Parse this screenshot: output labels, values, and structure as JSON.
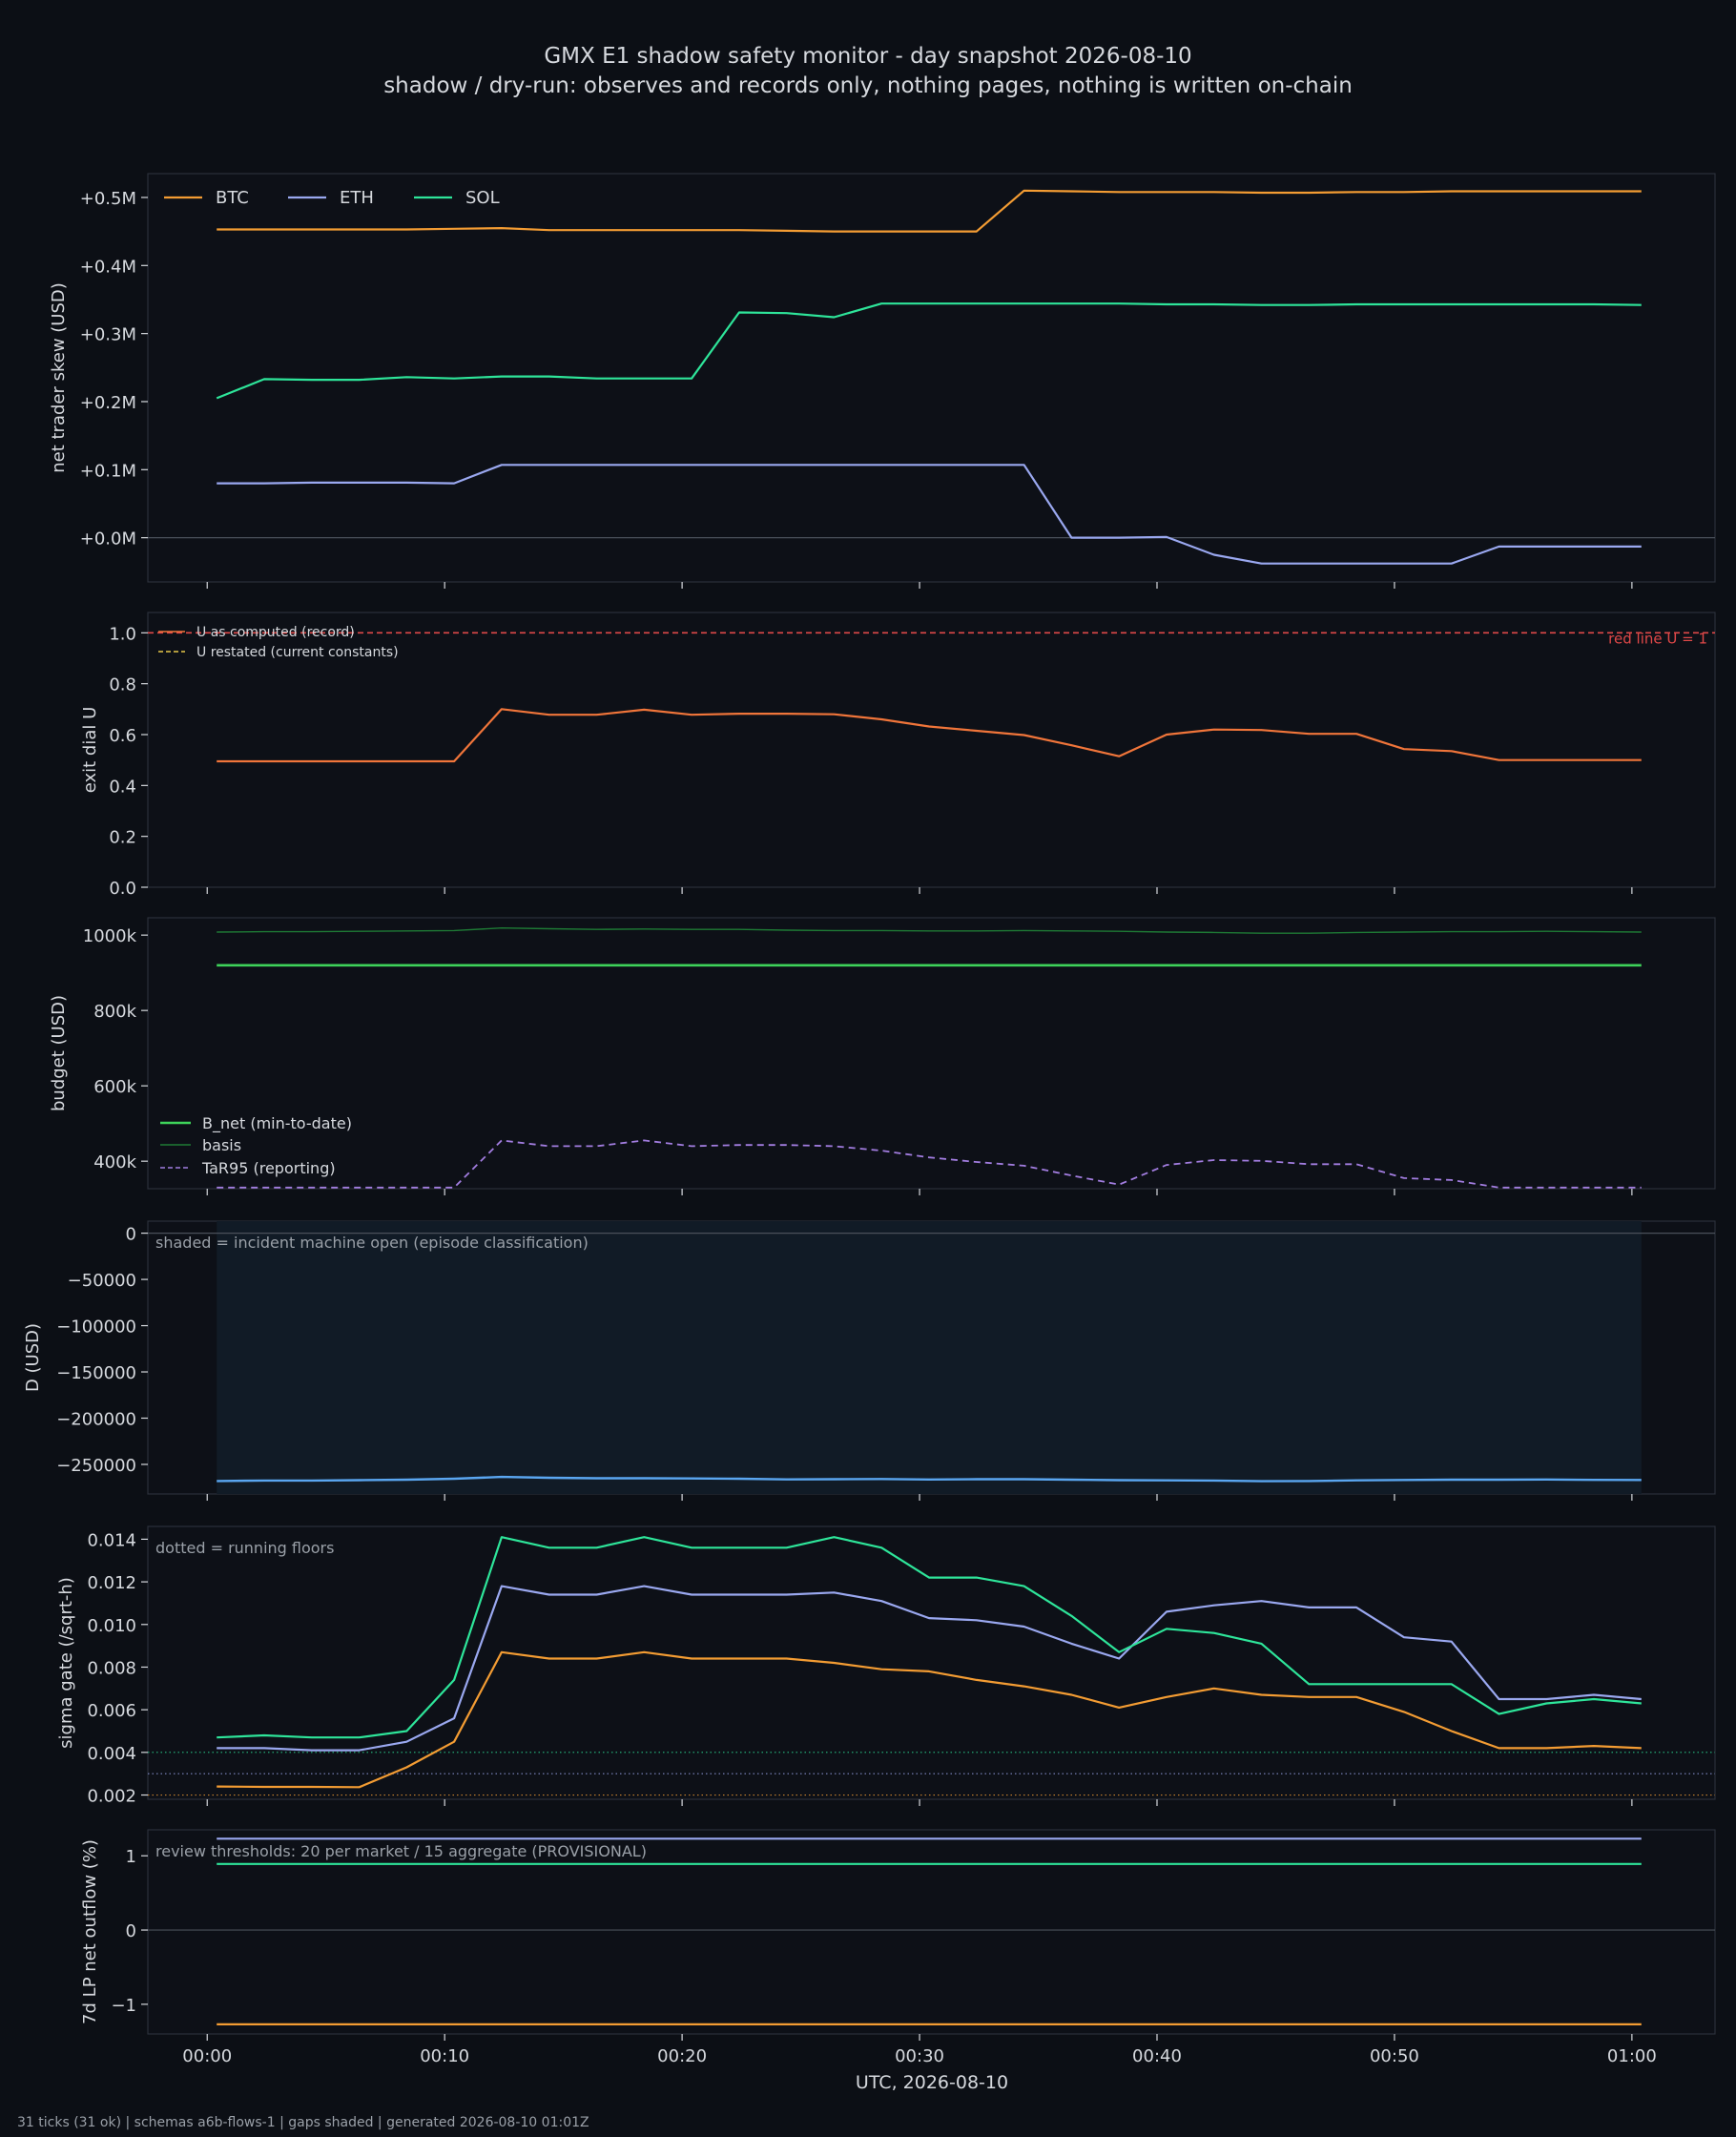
{
  "title_line1": "GMX E1 shadow safety monitor - day snapshot 2026-08-10",
  "title_line2": "shadow / dry-run: observes and records only, nothing pages, nothing is written on-chain",
  "footer": "31 ticks (31 ok) | schemas a6b-flows-1 | gaps shaded | generated 2026-08-10 01:01Z",
  "x_axis": {
    "label": "UTC, 2026-08-10",
    "tick_labels": [
      "00:00",
      "00:10",
      "00:20",
      "00:30",
      "00:40",
      "00:50",
      "01:00"
    ],
    "tick_minutes": [
      0,
      10,
      20,
      30,
      40,
      50,
      60
    ],
    "range_minutes": [
      -2.5,
      63.5
    ],
    "sample_minutes": [
      0.4,
      2.4,
      4.4,
      6.4,
      8.4,
      10.4,
      12.4,
      14.4,
      16.4,
      18.4,
      20.4,
      22.4,
      24.4,
      26.4,
      28.4,
      30.4,
      32.4,
      34.4,
      36.4,
      38.4,
      40.4,
      42.4,
      44.4,
      46.4,
      48.4,
      50.4,
      52.4,
      54.4,
      56.4,
      58.4,
      60.4
    ]
  },
  "colors": {
    "background": "#0c0f15",
    "panel_border": "#2b303a",
    "text": "#d6d9de",
    "muted": "#9aa0a8",
    "btc": "#f39c33",
    "eth": "#9aa8f0",
    "sol": "#2ee59a",
    "u_record": "#f0753a",
    "red_line": "#e04848",
    "u_restated": "#e8c84a",
    "b_net": "#3ed35a",
    "basis": "#1e7a35",
    "tar95": "#a27de0",
    "d_line": "#5aa6f0",
    "incident_shade": "#111b26"
  },
  "chart_data": [
    {
      "id": "skew",
      "type": "line",
      "ylabel": "net trader skew (USD)",
      "ylim": [
        -0.065,
        0.535
      ],
      "y_ticks": [
        0,
        0.1,
        0.2,
        0.3,
        0.4,
        0.5
      ],
      "y_tick_labels": [
        "+0.0M",
        "+0.1M",
        "+0.2M",
        "+0.3M",
        "+0.4M",
        "+0.5M"
      ],
      "zero_line": 0,
      "legend": {
        "placement": "top-left",
        "entries": [
          "BTC",
          "ETH",
          "SOL"
        ]
      },
      "series": [
        {
          "name": "BTC",
          "values": [
            0.453,
            0.453,
            0.453,
            0.453,
            0.453,
            0.454,
            0.455,
            0.452,
            0.452,
            0.452,
            0.452,
            0.452,
            0.451,
            0.45,
            0.45,
            0.45,
            0.45,
            0.51,
            0.509,
            0.508,
            0.508,
            0.508,
            0.507,
            0.507,
            0.508,
            0.508,
            0.509,
            0.509,
            0.509,
            0.509,
            0.509
          ]
        },
        {
          "name": "ETH",
          "values": [
            0.08,
            0.08,
            0.081,
            0.081,
            0.081,
            0.08,
            0.107,
            0.107,
            0.107,
            0.107,
            0.107,
            0.107,
            0.107,
            0.107,
            0.107,
            0.107,
            0.107,
            0.107,
            0.0,
            0.0,
            0.001,
            -0.025,
            -0.038,
            -0.038,
            -0.038,
            -0.038,
            -0.038,
            -0.013,
            -0.013,
            -0.013,
            -0.013
          ]
        },
        {
          "name": "SOL",
          "values": [
            0.205,
            0.233,
            0.232,
            0.232,
            0.236,
            0.234,
            0.237,
            0.237,
            0.234,
            0.234,
            0.234,
            0.331,
            0.33,
            0.324,
            0.344,
            0.344,
            0.344,
            0.344,
            0.344,
            0.344,
            0.343,
            0.343,
            0.342,
            0.342,
            0.343,
            0.343,
            0.343,
            0.343,
            0.343,
            0.343,
            0.342
          ]
        }
      ]
    },
    {
      "id": "exit_dial",
      "type": "line",
      "ylabel": "exit dial U",
      "ylim": [
        0,
        1.08
      ],
      "y_ticks": [
        0,
        0.2,
        0.4,
        0.6,
        0.8,
        1.0
      ],
      "y_tick_labels": [
        "0.0",
        "0.2",
        "0.4",
        "0.6",
        "0.8",
        "1.0"
      ],
      "red_line_value": 1.0,
      "red_line_label": "red line U = 1",
      "legend": {
        "placement": "top-left",
        "entries": [
          "U as computed (record)",
          "U restated (current constants)"
        ]
      },
      "series": [
        {
          "name": "U as computed (record)",
          "values": [
            0.495,
            0.495,
            0.495,
            0.495,
            0.495,
            0.495,
            0.7,
            0.678,
            0.678,
            0.698,
            0.678,
            0.682,
            0.682,
            0.68,
            0.66,
            0.632,
            0.615,
            0.598,
            0.558,
            0.515,
            0.6,
            0.62,
            0.618,
            0.603,
            0.603,
            0.543,
            0.535,
            0.5,
            0.5,
            0.5,
            0.5
          ]
        }
      ]
    },
    {
      "id": "budget",
      "type": "line",
      "ylabel": "budget (USD)",
      "ylim": [
        327000,
        1046000
      ],
      "y_ticks": [
        400000,
        600000,
        800000,
        1000000
      ],
      "y_tick_labels": [
        "400k",
        "600k",
        "800k",
        "1000k"
      ],
      "legend": {
        "placement": "bottom-left",
        "entries": [
          "B_net (min-to-date)",
          "basis",
          "TaR95 (reporting)"
        ]
      },
      "series": [
        {
          "name": "B_net (min-to-date)",
          "values": [
            920000,
            920000,
            920000,
            920000,
            920000,
            920000,
            920000,
            920000,
            920000,
            920000,
            920000,
            920000,
            920000,
            920000,
            920000,
            920000,
            920000,
            920000,
            920000,
            920000,
            920000,
            920000,
            920000,
            920000,
            920000,
            920000,
            920000,
            920000,
            920000,
            920000,
            920000
          ]
        },
        {
          "name": "basis",
          "values": [
            1008000,
            1009000,
            1009000,
            1010000,
            1011000,
            1012000,
            1019000,
            1017000,
            1015000,
            1016000,
            1015000,
            1015000,
            1013000,
            1012000,
            1012000,
            1011000,
            1011000,
            1012000,
            1011000,
            1010000,
            1008000,
            1007000,
            1005000,
            1005000,
            1007000,
            1008000,
            1009000,
            1009000,
            1010000,
            1009000,
            1008000
          ]
        },
        {
          "name": "TaR95 (reporting)",
          "values": [
            330000,
            330000,
            330000,
            330000,
            330000,
            330000,
            455000,
            440000,
            440000,
            455000,
            440000,
            443000,
            443000,
            440000,
            428000,
            410000,
            398000,
            388000,
            362000,
            338000,
            390000,
            403000,
            401000,
            392000,
            392000,
            355000,
            350000,
            330000,
            330000,
            330000,
            330000
          ]
        }
      ]
    },
    {
      "id": "drawdown",
      "type": "line",
      "ylabel": "D (USD)",
      "ylim": [
        -282000,
        13000
      ],
      "y_ticks": [
        0,
        -50000,
        -100000,
        -150000,
        -200000,
        -250000
      ],
      "y_tick_labels": [
        "0",
        "−50000",
        "−100000",
        "−150000",
        "−200000",
        "−250000"
      ],
      "zero_line": 0,
      "annotation": "shaded = incident machine open (episode classification)",
      "incident_shade_minutes": [
        0.4,
        60.4
      ],
      "series": [
        {
          "name": "D",
          "values": [
            -268000,
            -267500,
            -267500,
            -267000,
            -266500,
            -265500,
            -263500,
            -264500,
            -265000,
            -265000,
            -265200,
            -265500,
            -266200,
            -266000,
            -265800,
            -266300,
            -266000,
            -266000,
            -266500,
            -267000,
            -267200,
            -267500,
            -268200,
            -268000,
            -267200,
            -266800,
            -266500,
            -266500,
            -266300,
            -266700,
            -266800
          ]
        }
      ]
    },
    {
      "id": "sigma_gate",
      "type": "line",
      "ylabel": "sigma gate (/sqrt-h)",
      "ylim": [
        0.0018,
        0.0146
      ],
      "y_ticks": [
        0.002,
        0.004,
        0.006,
        0.008,
        0.01,
        0.012,
        0.014
      ],
      "y_tick_labels": [
        "0.002",
        "0.004",
        "0.006",
        "0.008",
        "0.010",
        "0.012",
        "0.014"
      ],
      "annotation": "dotted = running floors",
      "running_floors": [
        {
          "name": "SOL",
          "value": 0.004
        },
        {
          "name": "ETH",
          "value": 0.003
        },
        {
          "name": "BTC",
          "value": 0.002
        }
      ],
      "series": [
        {
          "name": "BTC",
          "values": [
            0.0024,
            0.00238,
            0.00238,
            0.00237,
            0.0033,
            0.0045,
            0.0087,
            0.0084,
            0.0084,
            0.0087,
            0.0084,
            0.0084,
            0.0084,
            0.0082,
            0.0079,
            0.0078,
            0.0074,
            0.0071,
            0.0067,
            0.0061,
            0.0066,
            0.007,
            0.0067,
            0.0066,
            0.0066,
            0.0059,
            0.005,
            0.0042,
            0.0042,
            0.0043,
            0.0042
          ]
        },
        {
          "name": "ETH",
          "values": [
            0.0042,
            0.0042,
            0.0041,
            0.0041,
            0.0045,
            0.0056,
            0.0118,
            0.0114,
            0.0114,
            0.0118,
            0.0114,
            0.0114,
            0.0114,
            0.0115,
            0.0111,
            0.0103,
            0.0102,
            0.0099,
            0.0091,
            0.0084,
            0.0106,
            0.0109,
            0.0111,
            0.0108,
            0.0108,
            0.0094,
            0.0092,
            0.0065,
            0.0065,
            0.0067,
            0.0065
          ]
        },
        {
          "name": "SOL",
          "values": [
            0.0047,
            0.0048,
            0.0047,
            0.0047,
            0.005,
            0.0074,
            0.0141,
            0.0136,
            0.0136,
            0.0141,
            0.0136,
            0.0136,
            0.0136,
            0.0141,
            0.0136,
            0.0122,
            0.0122,
            0.0118,
            0.0104,
            0.0087,
            0.0098,
            0.0096,
            0.0091,
            0.0072,
            0.0072,
            0.0072,
            0.0072,
            0.0058,
            0.0063,
            0.0065,
            0.0063
          ]
        }
      ]
    },
    {
      "id": "lp_outflow",
      "type": "line",
      "ylabel": "7d LP net outflow (%)",
      "ylim": [
        -1.4,
        1.35
      ],
      "y_ticks": [
        -1,
        0,
        1
      ],
      "y_tick_labels": [
        "−1",
        "0",
        "1"
      ],
      "zero_line": 0,
      "annotation": "review thresholds: 20 per market / 15 aggregate (PROVISIONAL)",
      "series": [
        {
          "name": "BTC",
          "values": [
            -1.27,
            -1.27,
            -1.27,
            -1.27,
            -1.27,
            -1.27,
            -1.27,
            -1.27,
            -1.27,
            -1.27,
            -1.27,
            -1.27,
            -1.27,
            -1.27,
            -1.27,
            -1.27,
            -1.27,
            -1.27,
            -1.27,
            -1.27,
            -1.27,
            -1.27,
            -1.27,
            -1.27,
            -1.27,
            -1.27,
            -1.27,
            -1.27,
            -1.27,
            -1.27,
            -1.27
          ]
        },
        {
          "name": "ETH",
          "values": [
            1.23,
            1.23,
            1.23,
            1.23,
            1.23,
            1.23,
            1.23,
            1.23,
            1.23,
            1.23,
            1.23,
            1.23,
            1.23,
            1.23,
            1.23,
            1.23,
            1.23,
            1.23,
            1.23,
            1.23,
            1.23,
            1.23,
            1.23,
            1.23,
            1.23,
            1.23,
            1.23,
            1.23,
            1.23,
            1.23,
            1.23
          ]
        },
        {
          "name": "SOL",
          "values": [
            0.89,
            0.89,
            0.89,
            0.89,
            0.89,
            0.89,
            0.89,
            0.89,
            0.89,
            0.89,
            0.89,
            0.89,
            0.89,
            0.89,
            0.89,
            0.89,
            0.89,
            0.89,
            0.89,
            0.89,
            0.89,
            0.89,
            0.89,
            0.89,
            0.89,
            0.89,
            0.89,
            0.89,
            0.89,
            0.89,
            0.89
          ]
        }
      ]
    }
  ]
}
